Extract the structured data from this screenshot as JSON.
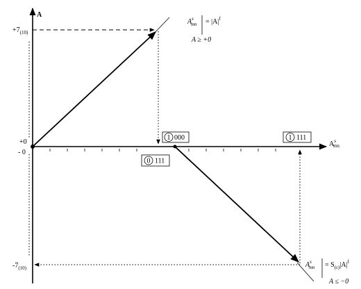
{
  "axes": {
    "y_label": "A",
    "x_label": "A",
    "x_label_sup": "s",
    "x_label_sub": "mn"
  },
  "y_labels": {
    "top": "+7",
    "top_sub": "(10)",
    "plus_zero": "+0",
    "minus_zero": "- 0",
    "bottom": "-7",
    "bottom_sub": "(10)"
  },
  "upper_formula": {
    "symbol": "A",
    "sup": "s",
    "sub": "mn",
    "rhs": "= |A|",
    "rhs_sup": "f",
    "condition": "A ≥ +0"
  },
  "lower_formula": {
    "symbol": "A",
    "sup": "s",
    "sub": "mn",
    "rhs": "= S",
    "rhs_sub": "(ε)",
    "rhs_tail": "|A|",
    "rhs_sup": "f",
    "condition": "A ≤ −0"
  },
  "codes": [
    {
      "sign": "1",
      "digits": "000"
    },
    {
      "sign": "0",
      "digits": "111"
    },
    {
      "sign": "1",
      "digits": "111"
    }
  ]
}
